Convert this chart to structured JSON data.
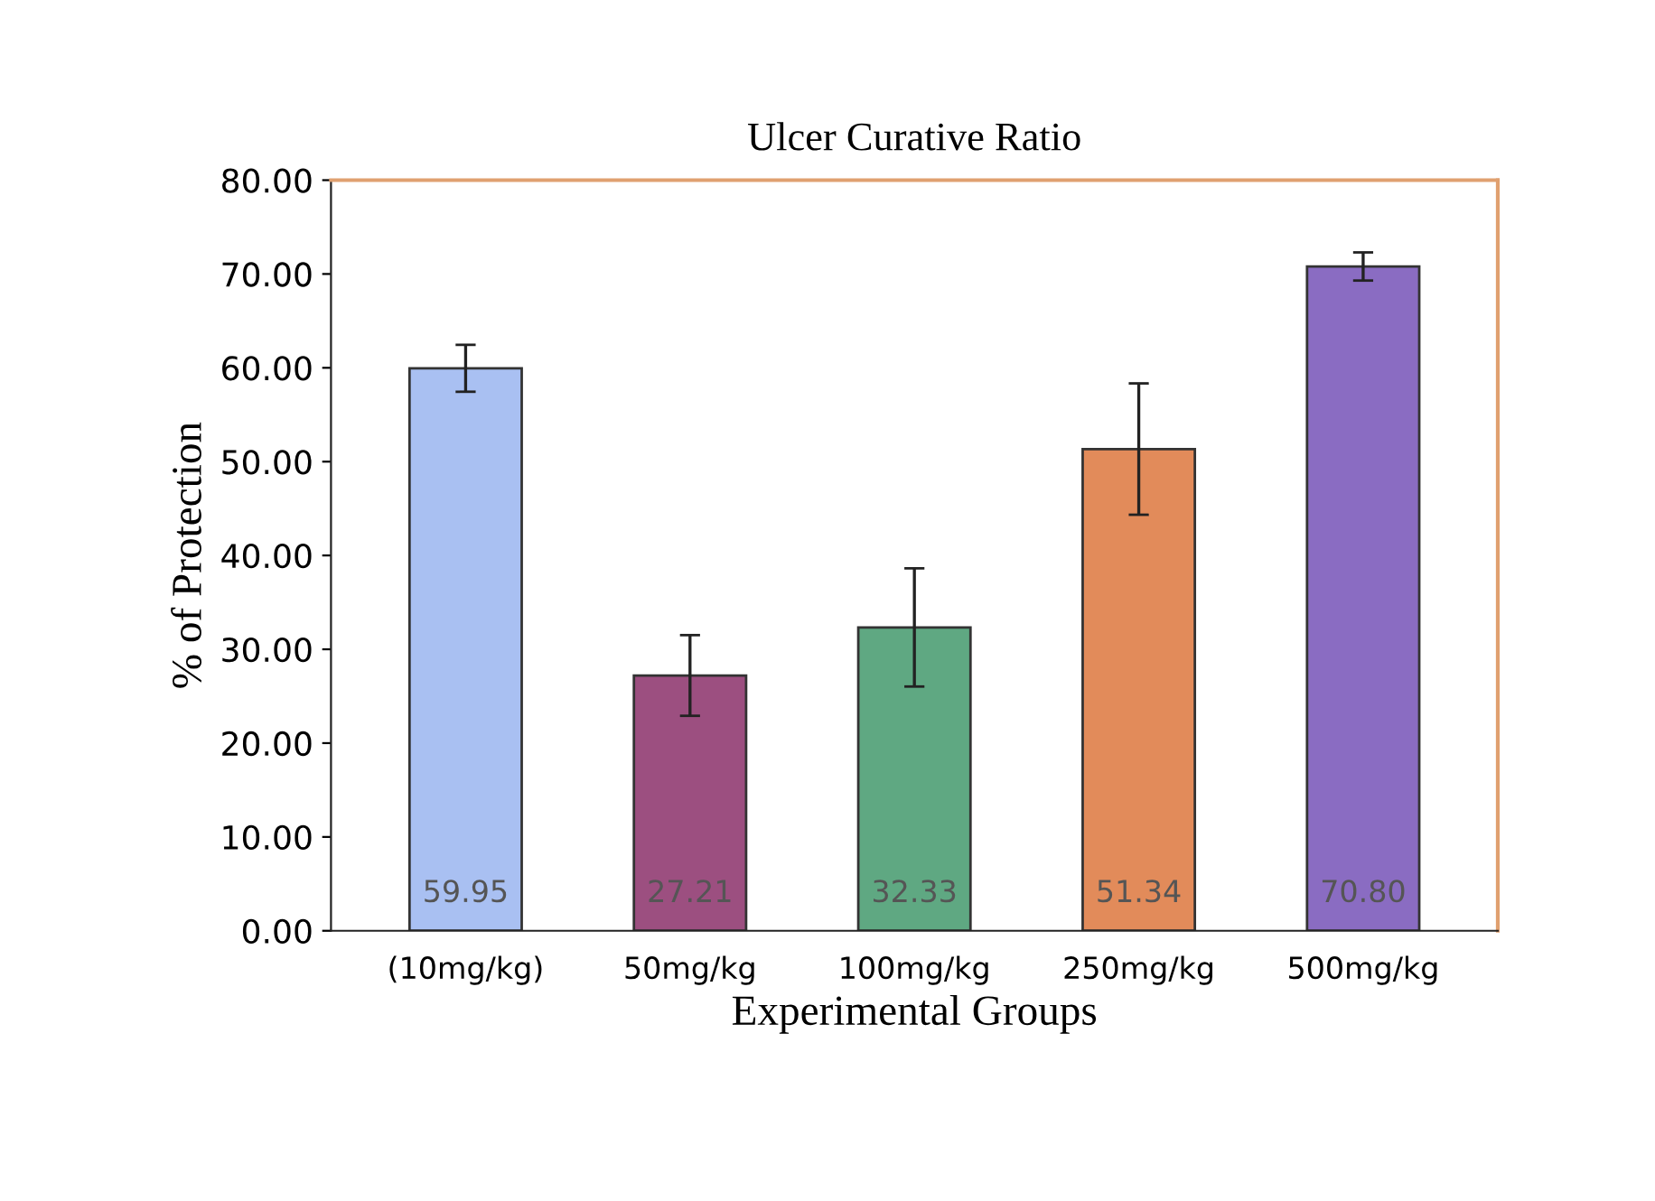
{
  "chart_data": {
    "type": "bar",
    "title": "Ulcer Curative Ratio",
    "xlabel": "Experimental Groups",
    "ylabel": "% of Protection",
    "categories": [
      "(10mg/kg)",
      "50mg/kg",
      "100mg/kg",
      "250mg/kg",
      "500mg/kg"
    ],
    "values": [
      59.95,
      27.21,
      32.33,
      51.34,
      70.8
    ],
    "value_labels": [
      "59.95",
      "27.21",
      "32.33",
      "51.34",
      "70.80"
    ],
    "errors": [
      2.5,
      4.3,
      6.3,
      7.0,
      1.5
    ],
    "colors": [
      "#a9c0f2",
      "#9c4f80",
      "#5fa882",
      "#e28b5a",
      "#8a6cc2"
    ],
    "ylim": [
      0,
      80
    ],
    "yticks": [
      {
        "value": 0,
        "label": "0.00"
      },
      {
        "value": 10,
        "label": "10.00"
      },
      {
        "value": 20,
        "label": "20.00"
      },
      {
        "value": 30,
        "label": "30.00"
      },
      {
        "value": 40,
        "label": "40.00"
      },
      {
        "value": 50,
        "label": "50.00"
      },
      {
        "value": 60,
        "label": "60.00"
      },
      {
        "value": 70,
        "label": "70.00"
      },
      {
        "value": 80,
        "label": "80.00"
      }
    ],
    "grid": false,
    "legend": false
  }
}
